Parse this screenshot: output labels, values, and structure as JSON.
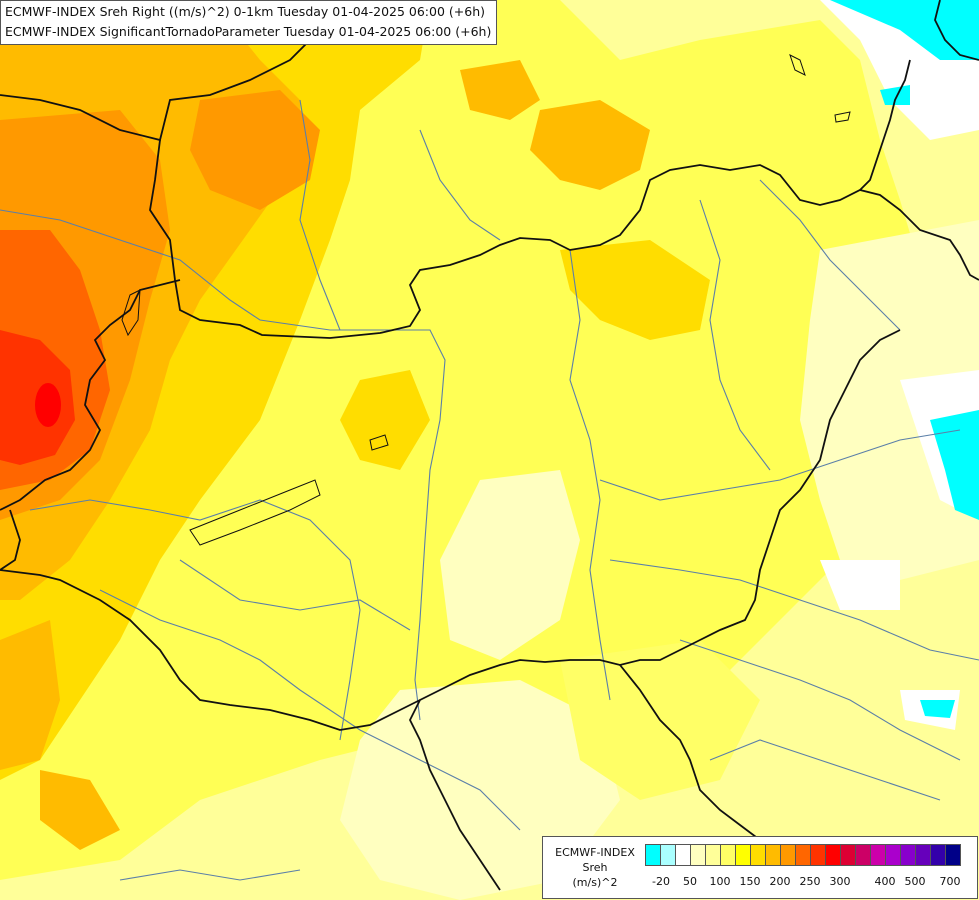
{
  "header": {
    "line1": "ECMWF-INDEX Sreh Right ((m/s)^2) 0-1km Tuesday 01-04-2025 06:00 (+6h)",
    "line2": "ECMWF-INDEX SignificantTornadoParameter Tuesday 01-04-2025 06:00 (+6h)"
  },
  "legend": {
    "title": "ECMWF-INDEX",
    "param": "Sreh",
    "unit": "(m/s)^2",
    "colors": [
      "#00ffff",
      "#aaffff",
      "#ffffff",
      "#ffffc0",
      "#ffff99",
      "#ffff66",
      "#ffff00",
      "#ffdd00",
      "#ffbb00",
      "#ff9900",
      "#ff6600",
      "#ff3300",
      "#ff0000",
      "#dd0033",
      "#cc0066",
      "#cc00aa",
      "#aa00cc",
      "#8800cc",
      "#6600bb",
      "#3300aa",
      "#000088"
    ],
    "ticks": [
      "-20",
      "50",
      "100",
      "150",
      "200",
      "250",
      "300",
      "400",
      "500",
      "700"
    ]
  }
}
